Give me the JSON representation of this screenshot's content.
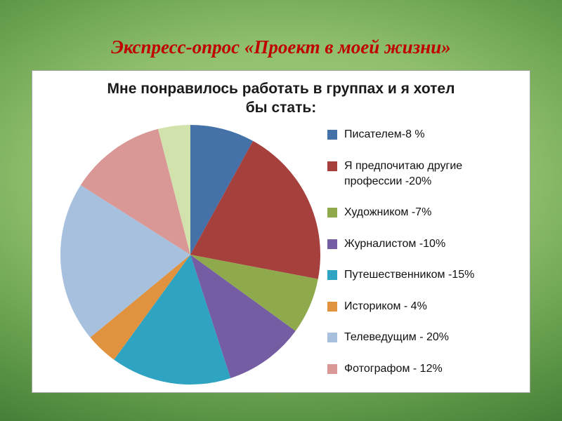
{
  "slide": {
    "title": "Экспресс-опрос «Проект в моей жизни»"
  },
  "chart": {
    "title_line1": "Мне понравилось работать в группах и я хотел",
    "title_line2": "бы стать:"
  },
  "chart_data": {
    "type": "pie",
    "title": "Мне понравилось работать в группах и я хотел бы стать:",
    "legend_position": "right",
    "start_angle_deg": 0,
    "direction": "clockwise",
    "slices": [
      {
        "label": "Писателем-8 %",
        "value": 8,
        "color": "#4472a8",
        "in_legend": true
      },
      {
        "label": "Я предпочитаю другие профессии -20%",
        "value": 20,
        "color": "#a5403d",
        "in_legend": true
      },
      {
        "label": "Художником -7%",
        "value": 7,
        "color": "#8faa4c",
        "in_legend": true
      },
      {
        "label": "Журналистом -10%",
        "value": 10,
        "color": "#745da2",
        "in_legend": true
      },
      {
        "label": "Путешественником -15%",
        "value": 15,
        "color": "#2ea3c2",
        "in_legend": true
      },
      {
        "label": "Историком - 4%",
        "value": 4,
        "color": "#e0923f",
        "in_legend": true
      },
      {
        "label": "Телеведущим - 20%",
        "value": 20,
        "color": "#a6c0dd",
        "in_legend": true
      },
      {
        "label": "Фотографом - 12%",
        "value": 12,
        "color": "#d99896",
        "in_legend": true
      },
      {
        "label": "",
        "value": 4,
        "color": "#d2e2ac",
        "in_legend": false
      }
    ]
  }
}
